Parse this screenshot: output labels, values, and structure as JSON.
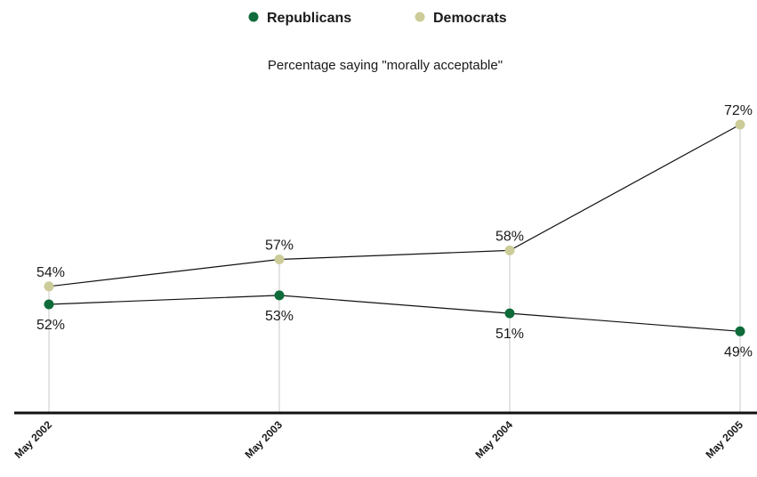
{
  "chart_data": {
    "type": "line",
    "subtitle": "Percentage saying \"morally acceptable\"",
    "categories": [
      "May 2002",
      "May 2003",
      "May 2004",
      "May 2005"
    ],
    "series": [
      {
        "name": "Republicans",
        "values": [
          52,
          53,
          51,
          49
        ],
        "labels": [
          "52%",
          "53%",
          "51%",
          "49%"
        ],
        "color": "#0f6b3a"
      },
      {
        "name": "Democrats",
        "values": [
          54,
          57,
          58,
          72
        ],
        "labels": [
          "54%",
          "57%",
          "58%",
          "72%"
        ],
        "color": "#cccc99"
      }
    ],
    "grid": false,
    "legend_position": "top-center",
    "colors": {
      "line": "#111111",
      "drop_line": "#c8c8c8",
      "axis": "#111111"
    }
  }
}
